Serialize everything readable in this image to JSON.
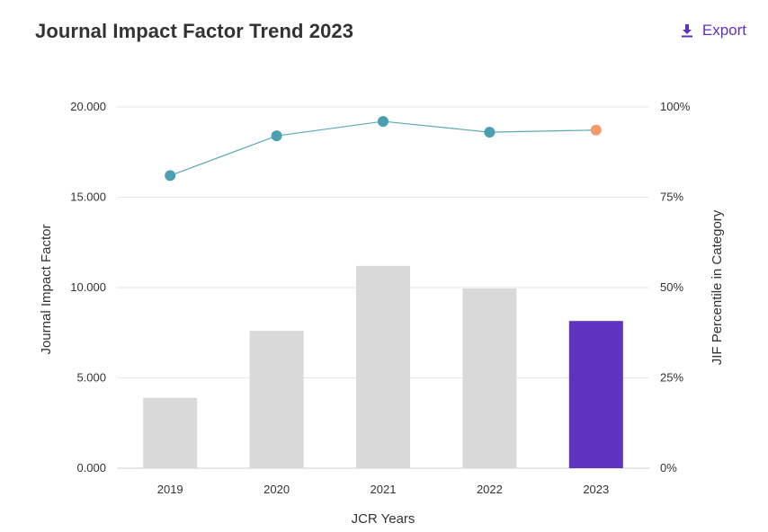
{
  "header": {
    "title": "Journal Impact Factor Trend 2023",
    "export_label": "Export",
    "export_icon": "download-icon"
  },
  "colors": {
    "accent": "#5e33bf",
    "bar_default": "#d9d9d9",
    "bar_highlight": "#5e33bf",
    "line": "#5ba9b8",
    "point_default": "#4a9fb1",
    "point_highlight": "#f79a6b",
    "grid": "#e6e6e6"
  },
  "chart_data": {
    "type": "bar+line",
    "title": "Journal Impact Factor Trend 2023",
    "xlabel": "JCR Years",
    "ylabel_left": "Journal Impact Factor",
    "ylabel_right": "JIF Percentile in Category",
    "categories": [
      "2019",
      "2020",
      "2021",
      "2022",
      "2023"
    ],
    "ylim_left": [
      0,
      20
    ],
    "ylim_right": [
      0,
      100
    ],
    "yticks_left": [
      "0.000",
      "5.000",
      "10.000",
      "15.000",
      "20.000"
    ],
    "yticks_right": [
      "0%",
      "25%",
      "50%",
      "75%",
      "100%"
    ],
    "grid": true,
    "highlight_category": "2023",
    "series": [
      {
        "name": "Journal Impact Factor",
        "type": "bar",
        "axis": "left",
        "values": [
          3.9,
          7.6,
          11.2,
          9.95,
          8.15
        ]
      },
      {
        "name": "JIF Percentile in Category",
        "type": "line",
        "axis": "right",
        "values": [
          81,
          92,
          96,
          93,
          93.6
        ]
      }
    ]
  }
}
